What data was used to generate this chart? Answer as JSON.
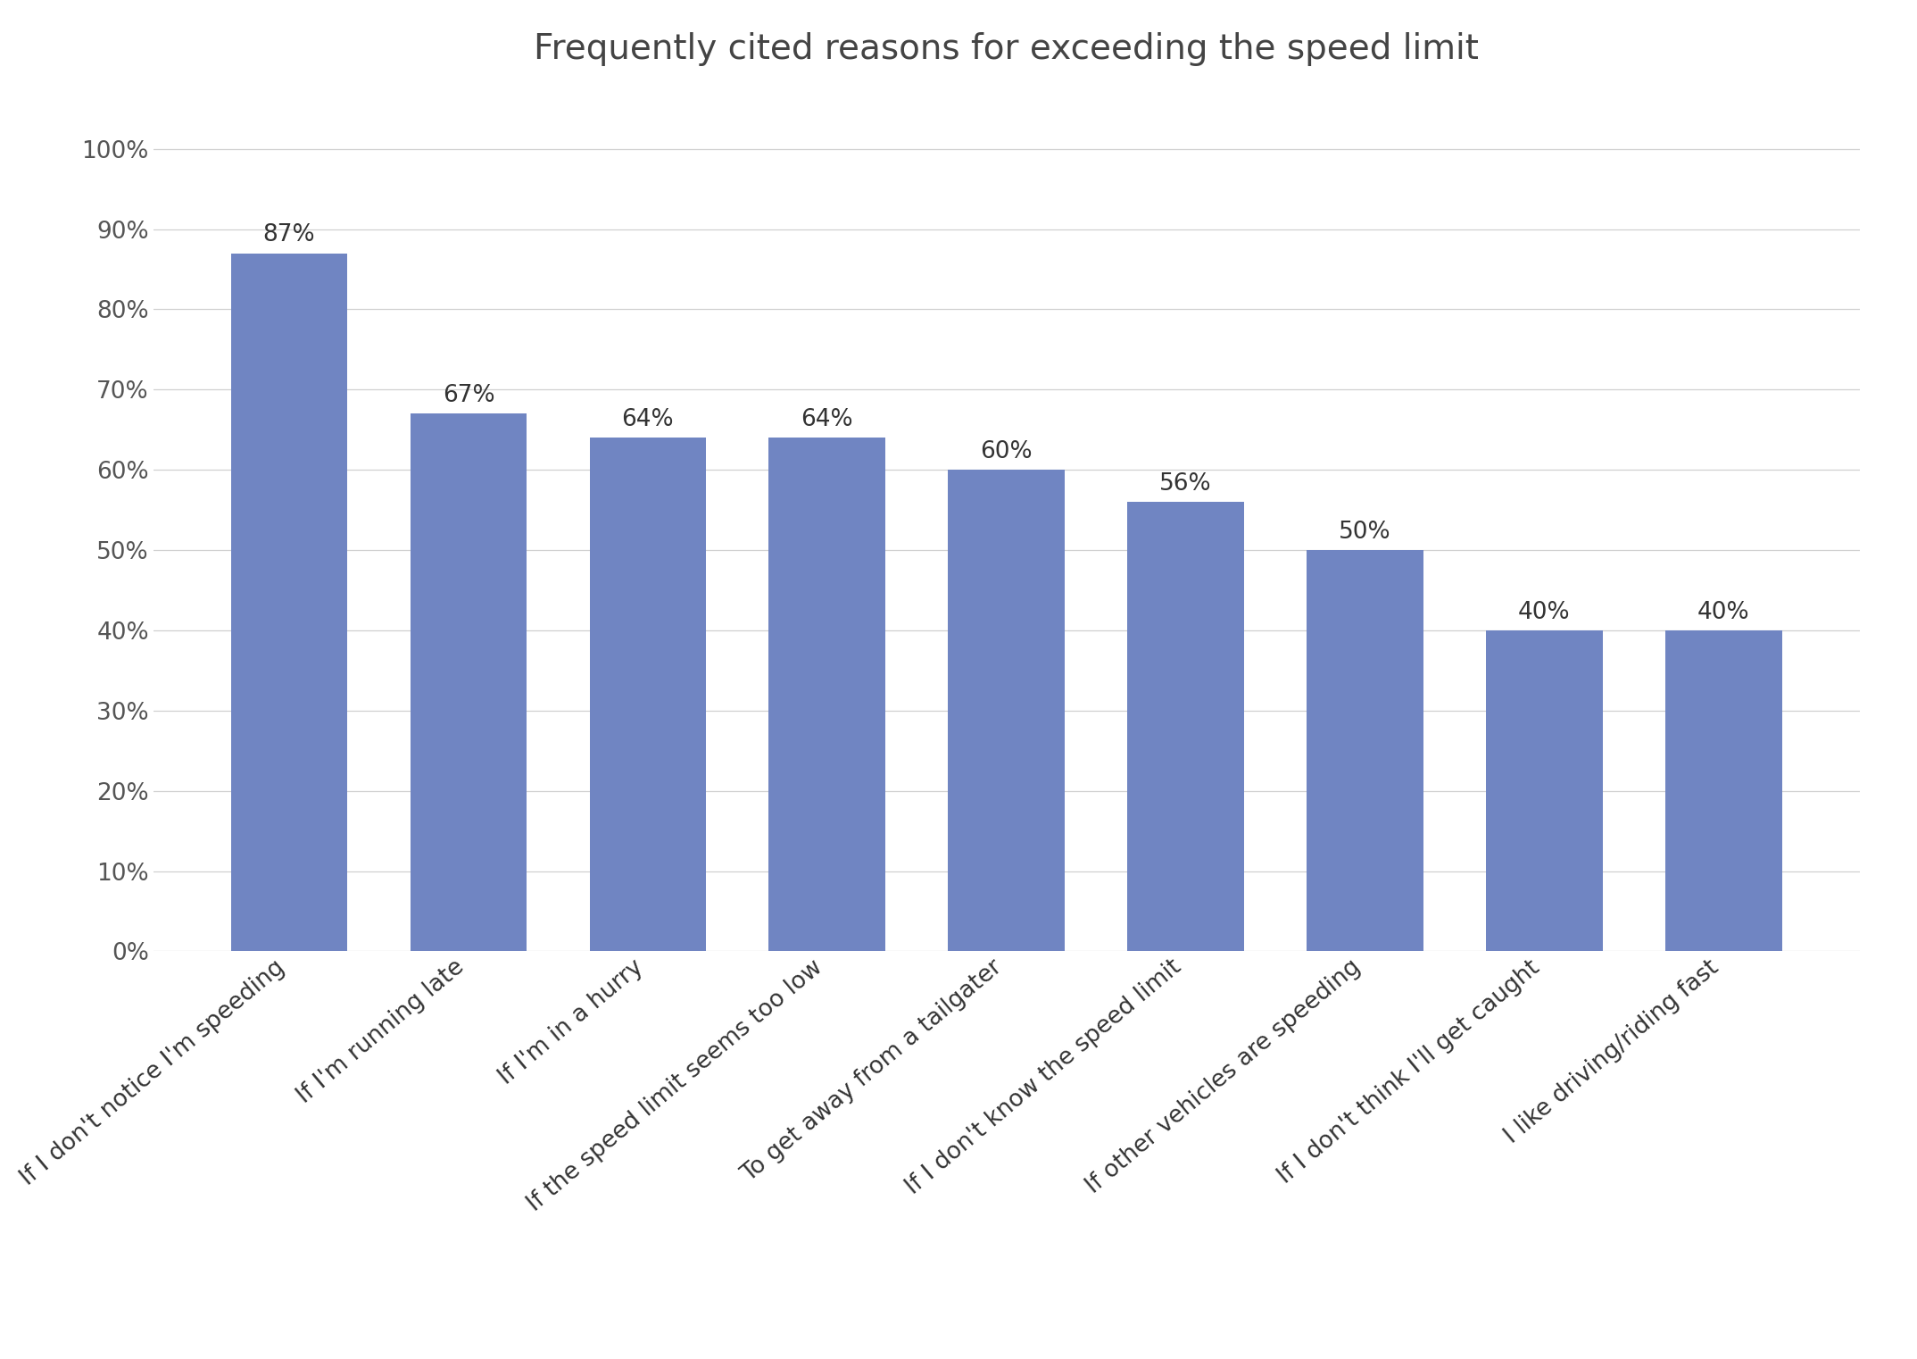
{
  "title": "Frequently cited reasons for exceeding the speed limit",
  "categories": [
    "If I don't notice I'm speeding",
    "If I'm running late",
    "If I'm in a hurry",
    "If the speed limit seems too low",
    "To get away from a tailgater",
    "If I don't know the speed limit",
    "If other vehicles are speeding",
    "If I don't think I'll get caught",
    "I like driving/riding fast"
  ],
  "values": [
    0.87,
    0.67,
    0.64,
    0.64,
    0.6,
    0.56,
    0.5,
    0.4,
    0.4
  ],
  "bar_color": "#7085C2",
  "title_fontsize": 28,
  "tick_fontsize": 19,
  "value_label_fontsize": 19,
  "background_color": "#ffffff",
  "grid_color": "#d0d0d0",
  "ylim": [
    0,
    1.05
  ]
}
